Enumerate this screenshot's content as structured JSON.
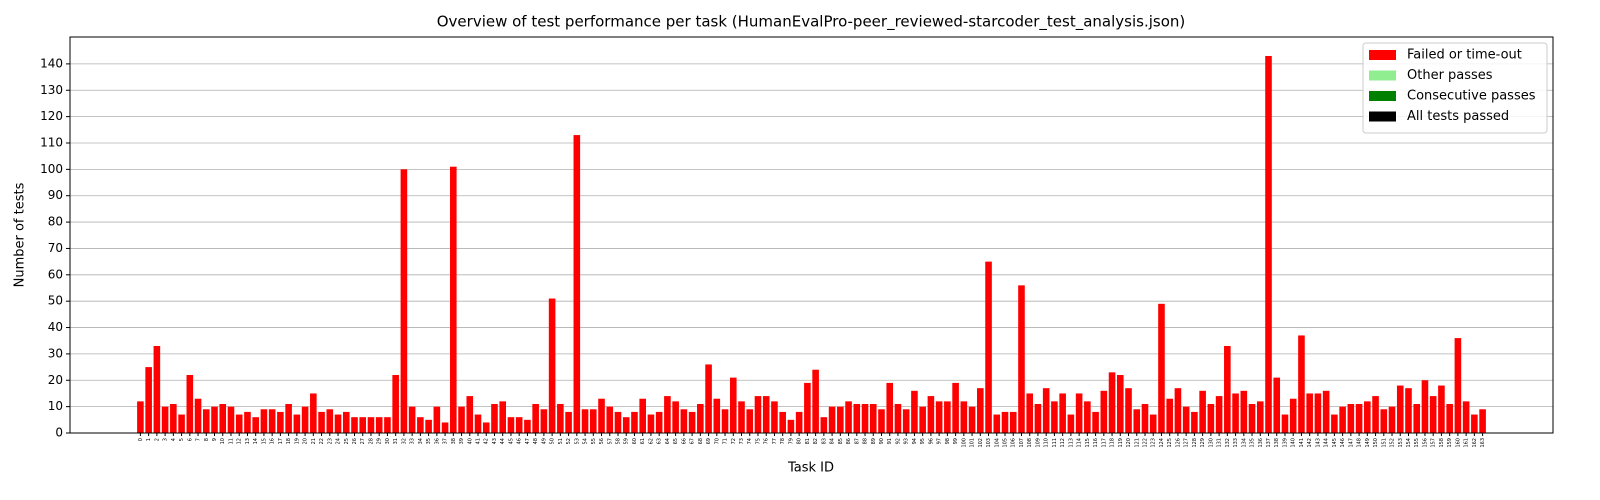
{
  "chart_data": {
    "type": "bar",
    "stacked": true,
    "title": "Overview of test performance per task (HumanEvalPro-peer_reviewed-starcoder_test_analysis.json)",
    "xlabel": "Task ID",
    "ylabel": "Number of tests",
    "categories": [
      "0",
      "1",
      "2",
      "3",
      "4",
      "5",
      "6",
      "7",
      "8",
      "9",
      "10",
      "11",
      "12",
      "13",
      "14",
      "15",
      "16",
      "17",
      "18",
      "19",
      "20",
      "21",
      "22",
      "23",
      "24",
      "25",
      "26",
      "27",
      "28",
      "29",
      "30",
      "31",
      "32",
      "33",
      "34",
      "35",
      "36",
      "37",
      "38",
      "39",
      "40",
      "41",
      "42",
      "43",
      "44",
      "45",
      "46",
      "47",
      "48",
      "49",
      "50",
      "51",
      "52",
      "53",
      "54",
      "55",
      "56",
      "57",
      "58",
      "59",
      "60",
      "61",
      "62",
      "63",
      "64",
      "65",
      "66",
      "67",
      "68",
      "69",
      "70",
      "71",
      "72",
      "73",
      "74",
      "75",
      "76",
      "77",
      "78",
      "79",
      "80",
      "81",
      "82",
      "83",
      "84",
      "85",
      "86",
      "87",
      "88",
      "89",
      "90",
      "91",
      "92",
      "93",
      "94",
      "95",
      "96",
      "97",
      "98",
      "99",
      "100",
      "101",
      "102",
      "103",
      "104",
      "105",
      "106",
      "107",
      "108",
      "109",
      "110",
      "111",
      "112",
      "113",
      "114",
      "115",
      "116",
      "117",
      "118",
      "119",
      "120",
      "121",
      "122",
      "123",
      "124",
      "125",
      "126",
      "127",
      "128",
      "129",
      "130",
      "131",
      "132",
      "133",
      "134",
      "135",
      "136",
      "137",
      "138",
      "139",
      "140",
      "141",
      "142",
      "143",
      "144",
      "145",
      "146",
      "147",
      "148",
      "149",
      "150",
      "151",
      "152",
      "153",
      "154",
      "155",
      "156",
      "157",
      "158",
      "159",
      "160",
      "161",
      "162",
      "163"
    ],
    "series": [
      {
        "name": "Failed or time-out",
        "color": "#ff0000",
        "values": [
          12,
          25,
          33,
          10,
          11,
          7,
          22,
          13,
          9,
          10,
          11,
          10,
          7,
          8,
          6,
          9,
          9,
          8,
          11,
          7,
          10,
          15,
          8,
          9,
          7,
          8,
          6,
          6,
          6,
          6,
          6,
          22,
          100,
          10,
          6,
          5,
          10,
          4,
          101,
          10,
          14,
          7,
          4,
          11,
          12,
          6,
          6,
          5,
          11,
          9,
          51,
          11,
          8,
          113,
          9,
          9,
          13,
          10,
          8,
          6,
          8,
          13,
          7,
          8,
          14,
          12,
          9,
          8,
          11,
          26,
          13,
          9,
          21,
          12,
          9,
          14,
          14,
          12,
          8,
          5,
          8,
          19,
          24,
          6,
          10,
          10,
          12,
          11,
          11,
          11,
          9,
          19,
          11,
          9,
          16,
          10,
          14,
          12,
          12,
          19,
          12,
          10,
          17,
          65,
          7,
          8,
          8,
          56,
          15,
          11,
          17,
          12,
          15,
          7,
          15,
          12,
          8,
          16,
          23,
          22,
          17,
          9,
          11,
          7,
          49,
          13,
          17,
          10,
          8,
          16,
          11,
          14,
          33,
          15,
          16,
          11,
          12,
          143,
          21,
          7,
          13,
          37,
          15,
          15,
          16,
          7,
          10,
          11,
          11,
          12,
          14,
          9,
          10,
          18,
          17,
          11,
          20,
          14,
          18,
          11,
          36,
          12,
          7,
          9
        ]
      },
      {
        "name": "Other passes",
        "color": "#90ee90",
        "values": [
          0,
          0,
          0,
          0,
          0,
          0,
          0,
          0,
          0,
          0,
          0,
          0,
          0,
          0,
          0,
          0,
          0,
          0,
          0,
          0,
          0,
          0,
          0,
          0,
          0,
          0,
          0,
          0,
          0,
          0,
          0,
          0,
          0,
          0,
          0,
          0,
          0,
          0,
          0,
          0,
          0,
          0,
          0,
          0,
          0,
          0,
          0,
          0,
          0,
          0,
          0,
          0,
          0,
          0,
          0,
          0,
          0,
          0,
          0,
          0,
          0,
          0,
          0,
          0,
          0,
          0,
          0,
          0,
          0,
          0,
          0,
          0,
          0,
          0,
          0,
          0,
          0,
          0,
          0,
          0,
          0,
          0,
          0,
          0,
          0,
          0,
          0,
          0,
          0,
          0,
          0,
          0,
          0,
          0,
          0,
          0,
          0,
          0,
          0,
          0,
          0,
          0,
          0,
          0,
          0,
          0,
          0,
          0,
          0,
          0,
          0,
          0,
          0,
          0,
          0,
          0,
          0,
          0,
          0,
          0,
          0,
          0,
          0,
          0,
          0,
          0,
          0,
          0,
          0,
          0,
          0,
          0,
          0,
          0,
          0,
          0,
          0,
          0,
          0,
          0,
          0,
          0,
          0,
          0,
          0,
          0,
          0,
          0,
          0,
          0,
          0,
          0,
          0,
          0,
          0,
          0,
          0,
          0,
          0,
          0,
          0,
          0,
          0,
          0
        ]
      },
      {
        "name": "Consecutive passes",
        "color": "#008000",
        "values": [
          0,
          0,
          0,
          0,
          0,
          0,
          0,
          0,
          0,
          0,
          0,
          0,
          0,
          0,
          0,
          0,
          0,
          0,
          0,
          0,
          0,
          0,
          0,
          0,
          0,
          0,
          0,
          0,
          0,
          0,
          0,
          0,
          0,
          0,
          0,
          0,
          0,
          0,
          0,
          0,
          0,
          0,
          0,
          0,
          0,
          0,
          0,
          0,
          0,
          0,
          0,
          0,
          0,
          0,
          0,
          0,
          0,
          0,
          0,
          0,
          0,
          0,
          0,
          0,
          0,
          0,
          0,
          0,
          0,
          0,
          0,
          0,
          0,
          0,
          0,
          0,
          0,
          0,
          0,
          0,
          0,
          0,
          0,
          0,
          0,
          0,
          0,
          0,
          0,
          0,
          0,
          0,
          0,
          0,
          0,
          0,
          0,
          0,
          0,
          0,
          0,
          0,
          0,
          0,
          0,
          0,
          0,
          0,
          0,
          0,
          0,
          0,
          0,
          0,
          0,
          0,
          0,
          0,
          0,
          0,
          0,
          0,
          0,
          0,
          0,
          0,
          0,
          0,
          0,
          0,
          0,
          0,
          0,
          0,
          0,
          0,
          0,
          0,
          0,
          0,
          0,
          0,
          0,
          0,
          0,
          0,
          0,
          0,
          0,
          0,
          0,
          0,
          0,
          0,
          0,
          0,
          0,
          0,
          0,
          0,
          0,
          0,
          0,
          0
        ]
      },
      {
        "name": "All tests passed",
        "color": "#000000",
        "values": [
          0,
          0,
          0,
          0,
          0,
          0,
          0,
          0,
          0,
          0,
          0,
          0,
          0,
          0,
          0,
          0,
          0,
          0,
          0,
          0,
          0,
          0,
          0,
          0,
          0,
          0,
          0,
          0,
          0,
          0,
          0,
          0,
          0,
          0,
          0,
          0,
          0,
          0,
          0,
          0,
          0,
          0,
          0,
          0,
          0,
          0,
          0,
          0,
          0,
          0,
          0,
          0,
          0,
          0,
          0,
          0,
          0,
          0,
          0,
          0,
          0,
          0,
          0,
          0,
          0,
          0,
          0,
          0,
          0,
          0,
          0,
          0,
          0,
          0,
          0,
          0,
          0,
          0,
          0,
          0,
          0,
          0,
          0,
          0,
          0,
          0,
          0,
          0,
          0,
          0,
          0,
          0,
          0,
          0,
          0,
          0,
          0,
          0,
          0,
          0,
          0,
          0,
          0,
          0,
          0,
          0,
          0,
          0,
          0,
          0,
          0,
          0,
          0,
          0,
          0,
          0,
          0,
          0,
          0,
          0,
          0,
          0,
          0,
          0,
          0,
          0,
          0,
          0,
          0,
          0,
          0,
          0,
          0,
          0,
          0,
          0,
          0,
          0,
          0,
          0,
          0,
          0,
          0,
          0,
          0,
          0,
          0,
          0,
          0,
          0,
          0,
          0,
          0,
          0,
          0,
          0,
          0,
          0,
          0,
          0,
          0,
          0,
          0,
          0
        ]
      }
    ],
    "ylim": [
      0,
      150.2
    ],
    "yticks": [
      0,
      10,
      20,
      30,
      40,
      50,
      60,
      70,
      80,
      90,
      100,
      110,
      120,
      130,
      140
    ],
    "grid": true,
    "legend": "upper right"
  }
}
